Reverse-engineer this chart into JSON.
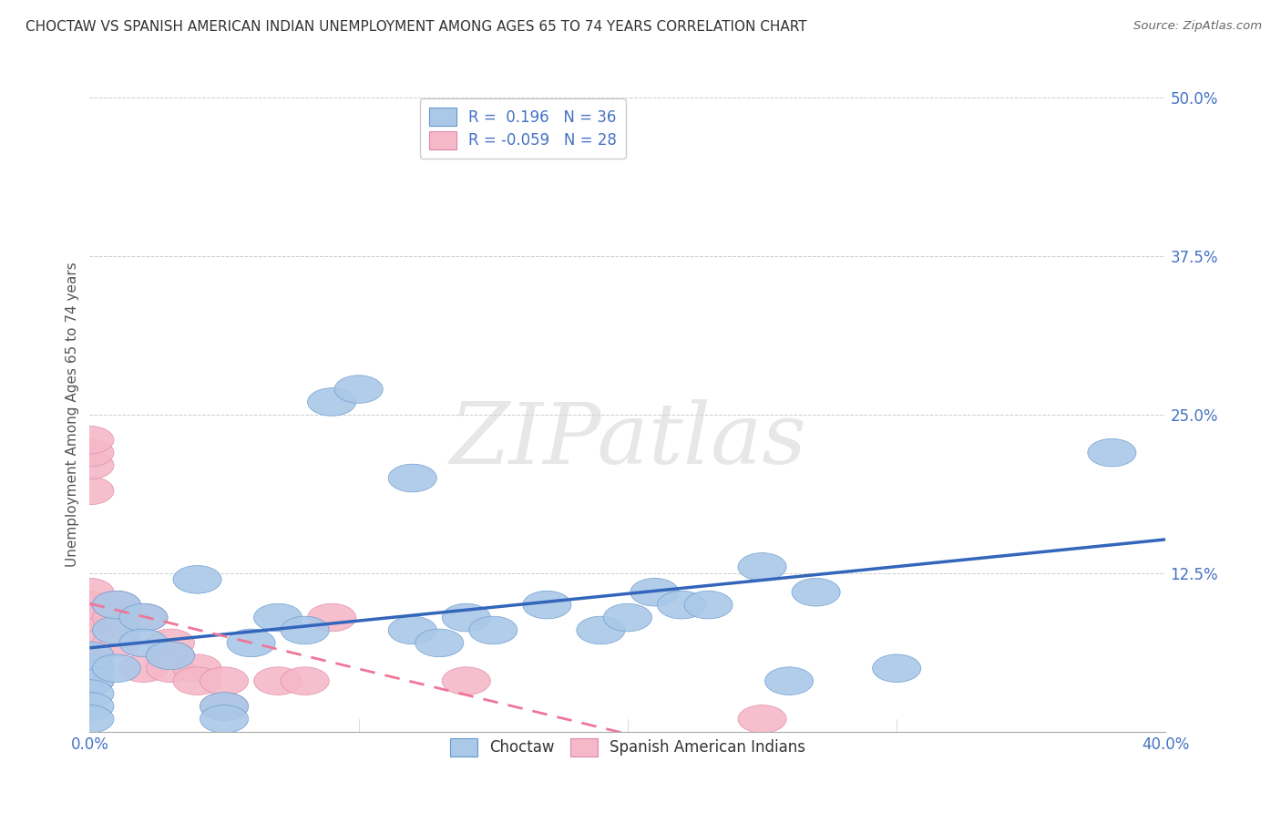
{
  "title": "CHOCTAW VS SPANISH AMERICAN INDIAN UNEMPLOYMENT AMONG AGES 65 TO 74 YEARS CORRELATION CHART",
  "source": "Source: ZipAtlas.com",
  "ylabel": "Unemployment Among Ages 65 to 74 years",
  "xlim": [
    0.0,
    0.4
  ],
  "ylim": [
    0.0,
    0.5
  ],
  "xticks": [
    0.0,
    0.1,
    0.2,
    0.3,
    0.4
  ],
  "xtick_labels": [
    "0.0%",
    "",
    "",
    "",
    "40.0%"
  ],
  "yticks": [
    0.0,
    0.125,
    0.25,
    0.375,
    0.5
  ],
  "ytick_labels": [
    "",
    "12.5%",
    "25.0%",
    "37.5%",
    "50.0%"
  ],
  "background_color": "#ffffff",
  "choctaw_R": 0.196,
  "choctaw_N": 36,
  "spanish_R": -0.059,
  "spanish_N": 28,
  "choctaw_face_color": "#aac8e8",
  "spanish_face_color": "#f5b8c8",
  "choctaw_edge_color": "#6699cc",
  "spanish_edge_color": "#dd88aa",
  "choctaw_line_color": "#3366bb",
  "spanish_line_color": "#ee7799",
  "choctaw_scatter": [
    [
      0.0,
      0.05
    ],
    [
      0.0,
      0.04
    ],
    [
      0.0,
      0.06
    ],
    [
      0.0,
      0.03
    ],
    [
      0.0,
      0.02
    ],
    [
      0.0,
      0.01
    ],
    [
      0.01,
      0.05
    ],
    [
      0.01,
      0.08
    ],
    [
      0.01,
      0.1
    ],
    [
      0.02,
      0.09
    ],
    [
      0.02,
      0.07
    ],
    [
      0.03,
      0.06
    ],
    [
      0.04,
      0.12
    ],
    [
      0.05,
      0.02
    ],
    [
      0.05,
      0.01
    ],
    [
      0.06,
      0.07
    ],
    [
      0.07,
      0.09
    ],
    [
      0.08,
      0.08
    ],
    [
      0.09,
      0.26
    ],
    [
      0.1,
      0.27
    ],
    [
      0.12,
      0.2
    ],
    [
      0.12,
      0.08
    ],
    [
      0.13,
      0.07
    ],
    [
      0.14,
      0.09
    ],
    [
      0.15,
      0.08
    ],
    [
      0.17,
      0.1
    ],
    [
      0.19,
      0.08
    ],
    [
      0.2,
      0.09
    ],
    [
      0.21,
      0.11
    ],
    [
      0.22,
      0.1
    ],
    [
      0.23,
      0.1
    ],
    [
      0.25,
      0.13
    ],
    [
      0.26,
      0.04
    ],
    [
      0.27,
      0.11
    ],
    [
      0.3,
      0.05
    ],
    [
      0.38,
      0.22
    ]
  ],
  "spanish_scatter": [
    [
      0.0,
      0.05
    ],
    [
      0.0,
      0.06
    ],
    [
      0.0,
      0.04
    ],
    [
      0.0,
      0.08
    ],
    [
      0.0,
      0.09
    ],
    [
      0.0,
      0.1
    ],
    [
      0.0,
      0.11
    ],
    [
      0.0,
      0.19
    ],
    [
      0.0,
      0.21
    ],
    [
      0.0,
      0.22
    ],
    [
      0.0,
      0.23
    ],
    [
      0.01,
      0.09
    ],
    [
      0.01,
      0.1
    ],
    [
      0.01,
      0.07
    ],
    [
      0.02,
      0.09
    ],
    [
      0.02,
      0.05
    ],
    [
      0.03,
      0.07
    ],
    [
      0.03,
      0.06
    ],
    [
      0.03,
      0.05
    ],
    [
      0.04,
      0.05
    ],
    [
      0.04,
      0.04
    ],
    [
      0.05,
      0.02
    ],
    [
      0.05,
      0.04
    ],
    [
      0.07,
      0.04
    ],
    [
      0.08,
      0.04
    ],
    [
      0.09,
      0.09
    ],
    [
      0.14,
      0.04
    ],
    [
      0.25,
      0.01
    ]
  ]
}
